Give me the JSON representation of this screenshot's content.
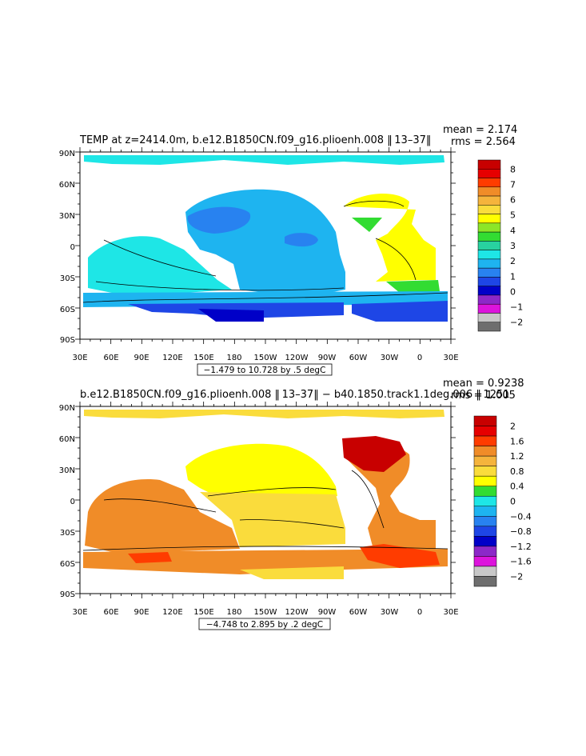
{
  "panels": [
    {
      "title": "TEMP at z=2414.0m, b.e12.B1850CN.f09_g16.plioenh.008 ‖ 13–37‖",
      "stats_line1": "mean = 2.174",
      "stats_line2": "rms = 2.564",
      "range_label": "−1.479 to 10.728 by .5 degC",
      "colorbar_labels": [
        "8",
        "7",
        "6",
        "5",
        "4",
        "3",
        "2",
        "1",
        "0",
        "−1",
        "−2"
      ],
      "colorbar_colors": [
        "#c80000",
        "#e60000",
        "#ff3c00",
        "#f08c28",
        "#f5b43c",
        "#fadc3c",
        "#ffff00",
        "#8ce628",
        "#32dc32",
        "#28d2a0",
        "#1ee6e6",
        "#1eb4f0",
        "#2882f0",
        "#1e46e6",
        "#0000c8",
        "#8c28c8",
        "#dc14dc",
        "#c8c8c8",
        "#6e6e6e"
      ]
    },
    {
      "title": "b.e12.B1850CN.f09_g16.plioenh.008 ‖ 13–37‖ − b40.1850.track1.1deg.006 ‖ 1251",
      "stats_line1": "mean = 0.9238",
      "stats_line2": "rms = 1.005",
      "range_label": "−4.748 to 2.895 by .2 degC",
      "colorbar_labels": [
        "2",
        "1.6",
        "1.2",
        "0.8",
        "0.4",
        "0",
        "−0.4",
        "−0.8",
        "−1.2",
        "−1.6",
        "−2"
      ],
      "colorbar_colors": [
        "#c80000",
        "#e60000",
        "#ff3c00",
        "#f08c28",
        "#f5b43c",
        "#fadc3c",
        "#ffff00",
        "#32dc32",
        "#1ee6e6",
        "#1eb4f0",
        "#2882f0",
        "#1e46e6",
        "#0000c8",
        "#8c28c8",
        "#dc14dc",
        "#c8c8c8",
        "#6e6e6e"
      ]
    }
  ],
  "lat_labels": [
    "90N",
    "60N",
    "30N",
    "0",
    "30S",
    "60S",
    "90S"
  ],
  "lon_labels": [
    "30E",
    "60E",
    "90E",
    "120E",
    "150E",
    "180",
    "150W",
    "120W",
    "90W",
    "60W",
    "30W",
    "0",
    "30E"
  ],
  "map_colors": {
    "panel1_base": "#1ee6e6",
    "panel1_pacific": "#1eb4f0",
    "panel1_pacific_core": "#2882f0",
    "panel1_atlantic": "#ffff00",
    "panel1_southern": "#1e46e6",
    "panel1_southern_deep": "#0000c8",
    "panel2_base": "#fadc3c",
    "panel2_pacific": "#ffff00",
    "panel2_indian": "#f08c28",
    "panel2_atlantic": "#f08c28",
    "panel2_north_atlantic": "#c80000",
    "panel2_southern": "#f08c28",
    "panel2_southern_hot": "#ff3c00"
  }
}
